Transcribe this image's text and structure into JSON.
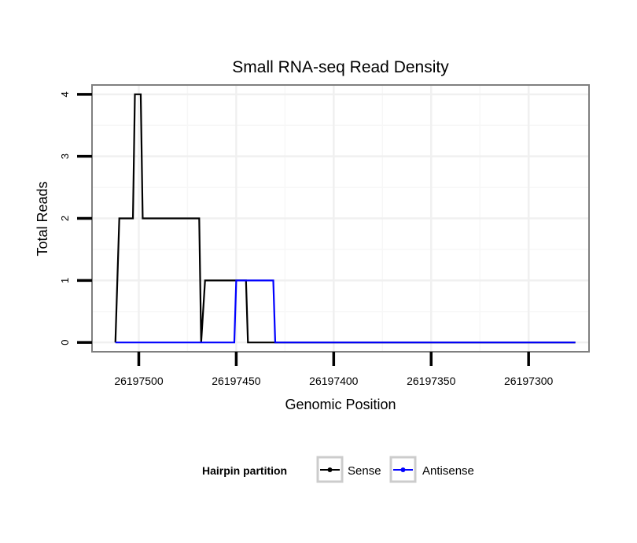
{
  "chart_data": {
    "type": "line",
    "title": "Small RNA-seq Read Density",
    "xlabel": "Genomic Position",
    "ylabel": "Total Reads",
    "x_reversed": true,
    "xlim": [
      26197524,
      26197269
    ],
    "ylim": [
      -0.15,
      4.15
    ],
    "x_ticks": [
      26197500,
      26197450,
      26197400,
      26197350,
      26197300
    ],
    "x_tick_labels": [
      "26197500",
      "26197450",
      "26197400",
      "26197350",
      "26197300"
    ],
    "y_ticks": [
      0,
      1,
      2,
      3,
      4
    ],
    "y_tick_labels": [
      "0",
      "1",
      "2",
      "3",
      "4"
    ],
    "grid": true,
    "legend": {
      "title": "Hairpin partition",
      "position": "bottom",
      "entries": [
        "Sense",
        "Antisense"
      ]
    },
    "series": [
      {
        "name": "Sense",
        "color": "#000000",
        "x": [
          26197512,
          26197510,
          26197503,
          26197502,
          26197499,
          26197498,
          26197491,
          26197490,
          26197469,
          26197468,
          26197466,
          26197465,
          26197447,
          26197446,
          26197445,
          26197444,
          26197276
        ],
        "y": [
          0,
          2,
          2,
          4,
          4,
          2,
          2,
          2,
          2,
          0,
          1,
          1,
          1,
          1,
          1,
          0,
          0
        ]
      },
      {
        "name": "Antisense",
        "color": "#0000ff",
        "x": [
          26197512,
          26197451,
          26197450,
          26197431,
          26197430,
          26197276
        ],
        "y": [
          0,
          0,
          1,
          1,
          0,
          0
        ]
      }
    ]
  }
}
